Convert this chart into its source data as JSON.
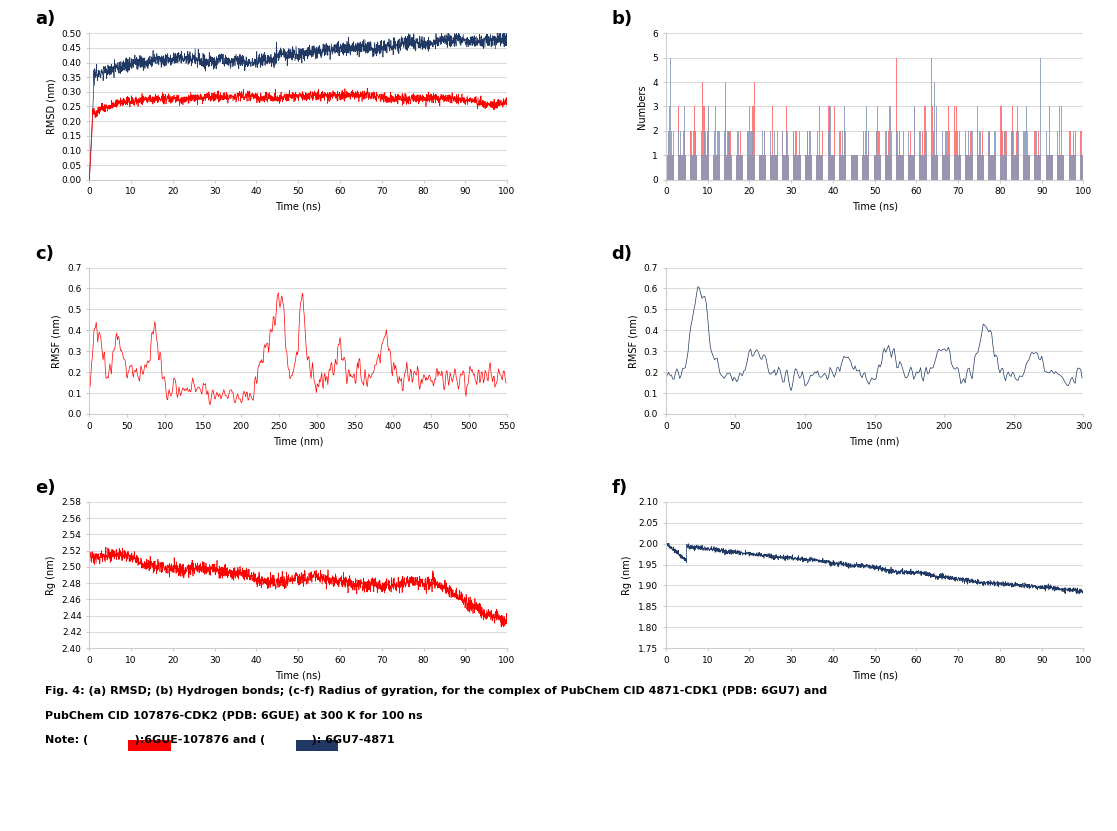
{
  "title_a": "a)",
  "title_b": "b)",
  "title_c": "c)",
  "title_d": "d)",
  "title_e": "e)",
  "title_f": "f)",
  "color_red": "#FF0000",
  "color_navy": "#1F3864",
  "color_red_light": "#FF6666",
  "color_navy_light": "#8899BB",
  "xlabel_time_ns": "Time (ns)",
  "xlabel_time_nm": "Time (nm)",
  "ylabel_rmsd": "RMSD (nm)",
  "ylabel_numbers": "Numbers",
  "ylabel_rmsf": "RMSF (nm)",
  "ylabel_rg": "Rg (nm)",
  "seed": 42
}
